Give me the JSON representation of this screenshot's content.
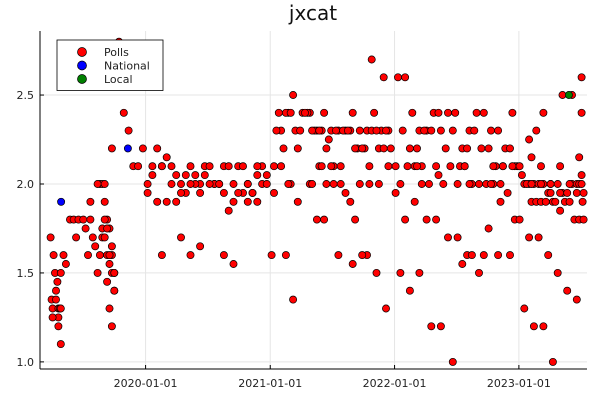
{
  "chart_data": {
    "type": "scatter",
    "title": "jxcat",
    "xlabel": "",
    "ylabel": "",
    "x_axis_type": "date",
    "xlim": [
      "2019-02-25",
      "2023-07-20"
    ],
    "ylim": [
      0.96,
      2.86
    ],
    "x_ticks": [
      "2020-01-01",
      "2021-01-01",
      "2022-01-01",
      "2023-01-01"
    ],
    "y_ticks": [
      1.0,
      1.5,
      2.0,
      2.5
    ],
    "y_tick_labels": [
      "1.0",
      "1.5",
      "2.0",
      "2.5"
    ],
    "grid": true,
    "legend_position": "top-left",
    "series": [
      {
        "name": "Polls",
        "color": "#ff0000",
        "x": [
          "2019-03-28",
          "2019-03-31",
          "2019-04-03",
          "2019-04-06",
          "2019-04-10",
          "2019-04-13",
          "2019-04-17",
          "2019-04-20",
          "2019-04-24",
          "2019-04-27",
          "2019-04-20",
          "2019-04-27",
          "2019-04-03",
          "2019-04-13",
          "2019-04-20",
          "2019-04-27",
          "2019-05-05",
          "2019-05-12",
          "2019-05-24",
          "2019-06-04",
          "2019-06-11",
          "2019-06-18",
          "2019-07-02",
          "2019-07-09",
          "2019-07-16",
          "2019-07-23",
          "2019-07-30",
          "2019-08-06",
          "2019-08-13",
          "2019-08-20",
          "2019-08-27",
          "2019-09-03",
          "2019-09-10",
          "2019-09-17",
          "2019-09-24",
          "2019-10-01",
          "2019-08-20",
          "2019-08-27",
          "2019-09-03",
          "2019-09-10",
          "2019-09-17",
          "2019-09-24",
          "2019-10-01",
          "2019-08-27",
          "2019-09-03",
          "2019-09-10",
          "2019-09-17",
          "2019-09-24",
          "2019-10-01",
          "2019-09-10",
          "2019-09-17",
          "2019-09-24",
          "2019-10-01",
          "2019-07-23",
          "2019-08-13",
          "2019-09-03",
          "2019-09-24",
          "2019-10-15",
          "2019-10-29",
          "2019-11-12",
          "2019-11-26",
          "2019-12-10",
          "2019-12-24",
          "2020-01-07",
          "2020-01-21",
          "2020-02-04",
          "2020-02-18",
          "2020-03-03",
          "2020-03-17",
          "2020-03-31",
          "2020-04-14",
          "2020-04-28",
          "2020-05-12",
          "2020-05-26",
          "2020-06-09",
          "2020-06-23",
          "2020-07-07",
          "2020-07-21",
          "2020-08-04",
          "2020-08-18",
          "2020-09-01",
          "2020-09-15",
          "2020-09-29",
          "2020-10-13",
          "2020-10-27",
          "2020-11-10",
          "2020-11-24",
          "2020-12-08",
          "2020-12-22",
          "2020-01-07",
          "2020-02-04",
          "2020-03-03",
          "2020-03-31",
          "2020-04-28",
          "2020-05-26",
          "2020-06-23",
          "2020-07-21",
          "2020-08-18",
          "2020-09-15",
          "2020-10-13",
          "2020-11-10",
          "2020-12-08",
          "2020-01-21",
          "2020-02-18",
          "2020-03-17",
          "2020-04-14",
          "2020-05-12",
          "2020-06-09",
          "2020-07-07",
          "2020-08-04",
          "2020-09-01",
          "2020-09-29",
          "2020-10-27",
          "2020-11-24",
          "2020-12-22",
          "2020-02-18",
          "2020-06-09",
          "2020-04-14",
          "2020-05-12",
          "2020-08-18",
          "2020-09-15",
          "2020-10-27",
          "2020-11-24",
          "2021-01-12",
          "2021-02-02",
          "2021-02-23",
          "2021-03-16",
          "2021-04-06",
          "2021-04-27",
          "2021-05-18",
          "2021-06-08",
          "2021-06-29",
          "2021-07-20",
          "2021-08-10",
          "2021-08-31",
          "2021-09-21",
          "2021-10-12",
          "2021-11-02",
          "2021-11-23",
          "2021-12-14",
          "2021-01-26",
          "2021-02-16",
          "2021-03-09",
          "2021-03-30",
          "2021-04-20",
          "2021-05-11",
          "2021-06-01",
          "2021-06-22",
          "2021-07-13",
          "2021-08-03",
          "2021-08-24",
          "2021-09-14",
          "2021-10-05",
          "2021-10-26",
          "2021-11-16",
          "2021-12-07",
          "2021-01-19",
          "2021-02-09",
          "2021-03-02",
          "2021-03-23",
          "2021-04-13",
          "2021-05-04",
          "2021-05-25",
          "2021-06-15",
          "2021-07-06",
          "2021-07-27",
          "2021-08-17",
          "2021-09-07",
          "2021-09-28",
          "2021-10-19",
          "2021-11-09",
          "2021-11-30",
          "2021-12-21",
          "2021-02-02",
          "2021-03-02",
          "2021-04-27",
          "2021-05-25",
          "2021-06-15",
          "2021-06-29",
          "2021-07-27",
          "2021-08-24",
          "2021-09-21",
          "2021-10-19",
          "2021-11-16",
          "2021-12-14",
          "2021-01-12",
          "2021-02-23",
          "2021-03-23",
          "2021-05-04",
          "2021-06-01",
          "2021-07-06",
          "2021-08-10",
          "2021-09-07",
          "2021-10-12",
          "2021-11-09",
          "2021-12-07",
          "2021-01-05",
          "2021-03-09",
          "2021-02-16",
          "2021-05-18",
          "2021-06-08",
          "2021-07-20",
          "2021-08-31",
          "2021-09-28",
          "2021-10-26",
          "2021-11-30",
          "2022-01-11",
          "2022-02-01",
          "2022-02-22",
          "2022-03-15",
          "2022-04-05",
          "2022-04-26",
          "2022-05-17",
          "2022-06-07",
          "2022-06-28",
          "2022-07-19",
          "2022-08-09",
          "2022-08-30",
          "2022-09-20",
          "2022-10-11",
          "2022-11-01",
          "2022-11-22",
          "2022-12-13",
          "2022-01-25",
          "2022-02-15",
          "2022-03-08",
          "2022-03-29",
          "2022-04-19",
          "2022-05-10",
          "2022-05-31",
          "2022-06-21",
          "2022-07-12",
          "2022-08-02",
          "2022-08-23",
          "2022-09-13",
          "2022-10-04",
          "2022-10-25",
          "2022-11-15",
          "2022-12-06",
          "2022-12-27",
          "2022-01-18",
          "2022-02-08",
          "2022-03-01",
          "2022-03-22",
          "2022-04-12",
          "2022-05-03",
          "2022-05-24",
          "2022-06-14",
          "2022-07-05",
          "2022-07-26",
          "2022-08-16",
          "2022-09-06",
          "2022-09-27",
          "2022-10-18",
          "2022-11-08",
          "2022-11-29",
          "2022-12-20",
          "2022-01-04",
          "2022-02-01",
          "2022-03-01",
          "2022-04-05",
          "2022-05-03",
          "2022-06-07",
          "2022-07-05",
          "2022-08-02",
          "2022-09-06",
          "2022-10-04",
          "2022-11-01",
          "2022-12-06",
          "2022-01-18",
          "2022-02-15",
          "2022-03-15",
          "2022-04-19",
          "2022-05-17",
          "2022-06-21",
          "2022-07-19",
          "2022-08-16",
          "2022-09-20",
          "2022-10-18",
          "2022-11-15",
          "2022-12-20",
          "2022-01-04",
          "2022-03-22",
          "2022-05-10",
          "2022-08-09",
          "2022-03-08",
          "2022-07-26",
          "2022-10-11",
          "2022-11-08",
          "2022-12-13",
          "2023-01-03",
          "2023-01-17",
          "2023-01-31",
          "2023-02-14",
          "2023-02-28",
          "2023-03-14",
          "2023-03-28",
          "2023-04-11",
          "2023-04-25",
          "2023-05-09",
          "2023-05-23",
          "2023-06-06",
          "2023-06-20",
          "2023-01-10",
          "2023-01-24",
          "2023-02-07",
          "2023-02-21",
          "2023-03-07",
          "2023-03-21",
          "2023-04-04",
          "2023-04-18",
          "2023-05-02",
          "2023-05-16",
          "2023-05-30",
          "2023-06-13",
          "2023-06-27",
          "2023-01-03",
          "2023-01-31",
          "2023-02-28",
          "2023-03-28",
          "2023-04-25",
          "2023-05-23",
          "2023-06-20",
          "2023-01-17",
          "2023-02-14",
          "2023-03-14",
          "2023-04-11",
          "2023-05-09",
          "2023-06-06",
          "2023-07-04",
          "2023-02-07",
          "2023-03-07",
          "2023-04-04",
          "2023-05-02",
          "2023-05-30",
          "2023-06-27",
          "2023-07-04",
          "2023-07-07",
          "2023-02-07",
          "2023-03-07",
          "2023-04-04",
          "2023-05-02",
          "2023-06-20",
          "2023-01-31",
          "2023-07-04",
          "2023-02-21",
          "2023-03-14",
          "2023-06-27",
          "2023-07-04",
          "2023-07-10",
          "2023-07-10"
        ],
        "y": [
          1.7,
          1.35,
          1.3,
          1.6,
          1.5,
          1.4,
          1.45,
          1.3,
          1.3,
          1.5,
          1.25,
          1.3,
          1.25,
          1.35,
          1.2,
          1.1,
          1.6,
          1.55,
          1.8,
          1.8,
          1.7,
          1.8,
          1.8,
          1.75,
          1.6,
          1.8,
          1.7,
          1.65,
          1.5,
          1.6,
          1.7,
          1.9,
          1.6,
          1.55,
          1.5,
          1.5,
          2.0,
          1.75,
          1.7,
          1.8,
          1.75,
          1.6,
          1.5,
          2.0,
          1.8,
          1.75,
          1.6,
          1.65,
          1.4,
          1.45,
          1.3,
          1.2,
          1.4,
          1.9,
          2.0,
          2.0,
          2.2,
          2.8,
          2.4,
          2.3,
          2.1,
          2.1,
          2.2,
          2.0,
          2.1,
          2.2,
          2.1,
          2.15,
          2.1,
          2.05,
          2.0,
          2.05,
          2.1,
          2.05,
          2.0,
          2.1,
          2.1,
          2.0,
          2.0,
          2.1,
          2.1,
          1.9,
          2.1,
          2.1,
          2.0,
          1.95,
          2.05,
          2.1,
          2.05,
          1.95,
          1.9,
          1.9,
          1.9,
          1.95,
          2.0,
          2.05,
          2.0,
          1.95,
          2.0,
          1.95,
          1.95,
          2.0,
          2.05,
          2.1,
          2.0,
          1.95,
          2.0,
          1.95,
          2.0,
          2.0,
          1.85,
          1.95,
          2.0,
          2.1,
          2.0,
          1.6,
          1.65,
          1.7,
          1.6,
          1.6,
          1.55,
          1.9,
          1.9,
          2.1,
          2.3,
          2.4,
          2.3,
          2.4,
          2.4,
          2.3,
          2.4,
          2.3,
          2.3,
          2.3,
          2.4,
          2.3,
          2.3,
          2.4,
          2.3,
          2.3,
          2.4,
          2.4,
          2.5,
          2.3,
          2.4,
          2.3,
          2.3,
          2.25,
          2.3,
          2.3,
          2.3,
          2.2,
          2.2,
          2.3,
          2.2,
          2.3,
          2.3,
          2.2,
          2.4,
          2.2,
          2.4,
          2.3,
          2.3,
          2.2,
          2.1,
          2.1,
          2.3,
          2.2,
          2.2,
          2.1,
          2.3,
          2.2,
          2.2,
          2.1,
          2.0,
          2.0,
          2.1,
          2.0,
          2.1,
          2.0,
          1.9,
          2.0,
          2.0,
          2.0,
          2.1,
          1.95,
          2.0,
          1.9,
          2.0,
          2.1,
          2.0,
          1.95,
          1.8,
          1.6,
          1.5,
          1.3,
          1.6,
          1.35,
          1.6,
          1.8,
          1.8,
          1.6,
          1.55,
          1.6,
          2.7,
          2.6,
          2.6,
          2.6,
          2.4,
          2.3,
          2.3,
          2.4,
          2.3,
          2.4,
          2.4,
          2.2,
          2.3,
          2.4,
          2.4,
          2.3,
          2.3,
          2.2,
          2.4,
          2.3,
          2.2,
          2.2,
          2.3,
          2.3,
          2.4,
          2.2,
          2.3,
          2.1,
          2.2,
          2.3,
          2.2,
          2.2,
          2.1,
          2.1,
          2.2,
          2.1,
          2.0,
          2.1,
          2.1,
          2.0,
          2.0,
          2.1,
          2.0,
          2.1,
          2.0,
          2.1,
          2.0,
          2.0,
          2.0,
          2.0,
          1.9,
          1.95,
          1.8,
          1.95,
          1.8,
          1.9,
          1.8,
          1.8,
          1.7,
          1.7,
          1.6,
          1.5,
          1.75,
          1.6,
          1.6,
          1.5,
          1.4,
          1.5,
          1.2,
          1.2,
          1.0,
          1.55,
          1.6,
          1.6,
          2.1,
          2.1,
          2.1,
          2.1,
          2.1,
          2.05,
          2.0,
          2.1,
          2.1,
          2.0,
          2.0,
          2.1,
          2.1,
          2.0,
          2.0,
          2.0,
          2.0,
          2.0,
          1.95,
          1.9,
          2.0,
          1.95,
          1.95,
          2.0,
          2.0,
          2.05,
          2.0,
          1.9,
          1.9,
          1.9,
          1.9,
          1.95,
          1.9,
          1.85,
          1.9,
          1.9,
          1.8,
          1.8,
          1.8,
          1.7,
          1.7,
          1.6,
          1.5,
          1.4,
          1.35,
          1.3,
          1.2,
          1.2,
          1.0,
          2.5,
          2.5,
          2.6,
          2.15,
          2.1,
          2.0,
          1.95,
          2.0,
          2.0,
          2.05,
          1.9,
          2.0,
          2.0,
          2.0,
          2.1,
          1.95,
          2.25,
          2.4,
          2.3,
          2.4,
          2.15,
          2.0,
          1.8,
          1.95
        ],
        "note": ""
      },
      {
        "name": "National",
        "color": "#0000ff",
        "x": [
          "2019-04-28",
          "2019-11-10"
        ],
        "y": [
          1.9,
          2.2
        ]
      },
      {
        "name": "Local",
        "color": "#008000",
        "x": [
          "2023-05-28"
        ],
        "y": [
          2.5
        ]
      }
    ]
  }
}
